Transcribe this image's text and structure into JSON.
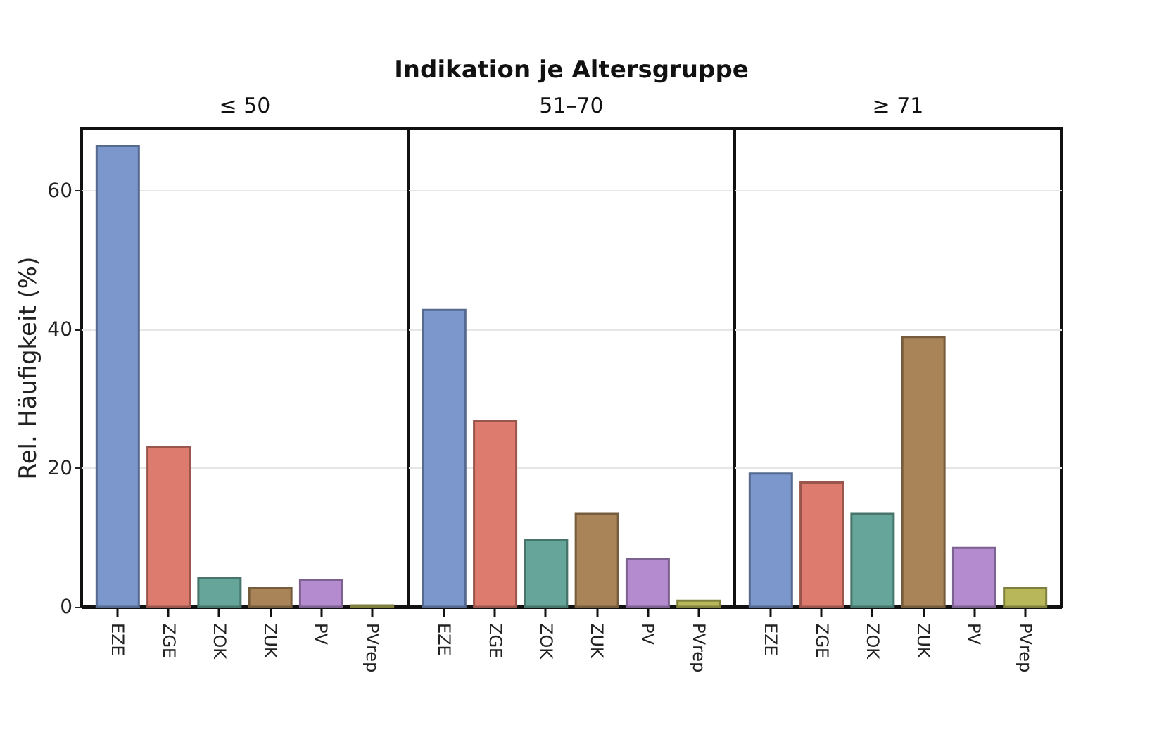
{
  "chart_data": [
    {
      "type": "bar",
      "subtitle": "≤ 50",
      "ylabel": "Rel. Häufigkeit (%)",
      "categories": [
        "EZE",
        "ZGE",
        "ZOK",
        "ZUK",
        "PV",
        "PVrep"
      ],
      "values": [
        66.4,
        23.0,
        4.2,
        2.7,
        3.8,
        0.2
      ],
      "colors": [
        "#7b97cc",
        "#dd7b6e",
        "#66a69a",
        "#a88458",
        "#b48bcf",
        "#b8b85a"
      ],
      "ylim": [
        0,
        69
      ],
      "yticks": [
        0,
        20,
        40,
        60
      ],
      "grid": "y"
    },
    {
      "type": "bar",
      "title": "Indikation je Altersgruppe",
      "subtitle": "51–70",
      "categories": [
        "EZE",
        "ZGE",
        "ZOK",
        "ZUK",
        "PV",
        "PVrep"
      ],
      "values": [
        42.8,
        26.8,
        9.6,
        13.4,
        6.9,
        0.9
      ],
      "colors": [
        "#7b97cc",
        "#dd7b6e",
        "#66a69a",
        "#a88458",
        "#b48bcf",
        "#b8b85a"
      ],
      "ylim": [
        0,
        69
      ],
      "yticks": [
        0,
        20,
        40,
        60
      ],
      "grid": "y",
      "tick_labels": "x"
    },
    {
      "type": "bar",
      "subtitle": "≥ 71",
      "categories": [
        "EZE",
        "ZGE",
        "ZOK",
        "ZUK",
        "PV",
        "PVrep"
      ],
      "values": [
        19.2,
        17.9,
        13.4,
        38.9,
        8.5,
        2.7
      ],
      "colors": [
        "#7b97cc",
        "#dd7b6e",
        "#66a69a",
        "#a88458",
        "#b48bcf",
        "#b8b85a"
      ],
      "ylim": [
        0,
        69
      ],
      "yticks": [
        0,
        20,
        40,
        60
      ],
      "grid": "y",
      "tick_labels": "x"
    }
  ]
}
